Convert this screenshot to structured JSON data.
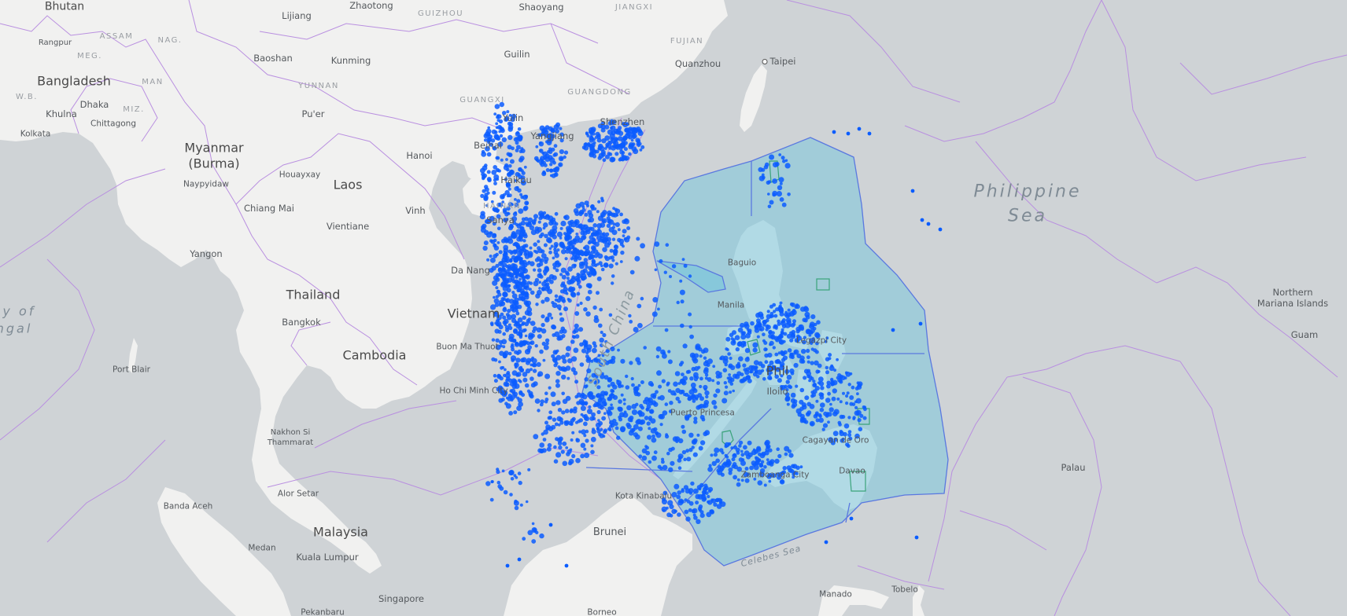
{
  "map": {
    "colors": {
      "water": "#cfd3d6",
      "land": "#f1f1f0",
      "border": "#b98fe0",
      "region_fill": "#7cc6dc",
      "region_stroke": "#5a78e0",
      "protected_stroke": "#3aa37a",
      "point": "#0a5cff"
    },
    "labels": {
      "bhutan": "Bhutan",
      "zhaotong": "Zhaotong",
      "shaoyang": "Shaoyang",
      "jiangxi": "JIANGXI",
      "guizhou": "GUIZHOU",
      "lijiang": "Lijiang",
      "rangpur": "Rangpur",
      "assam": "ASSAM",
      "nag": "NAG.",
      "meg": "MEG.",
      "fujian": "FUJIAN",
      "taipei": "Taipei",
      "baoshan": "Baoshan",
      "kunming": "Kunming",
      "guilin": "Guilin",
      "quanzhou": "Quanzhou",
      "bangladesh": "Bangladesh",
      "wb": "W.B.",
      "dhaka": "Dhaka",
      "man": "MAN",
      "yunnan": "YUNNAN",
      "guangdong": "GUANGDONG",
      "khulna": "Khulna",
      "miz": "MIZ.",
      "guangxi": "GUANGXI",
      "kolkata": "Kolkata",
      "chittagong": "Chittagong",
      "puer": "Pu'er",
      "yulin": "Yulin",
      "shenzhen": "Shenzhen",
      "yangjiang": "Yangjiang",
      "beihai": "Beihai",
      "myanmar": "Myanmar",
      "burma": "(Burma)",
      "hanoi": "Hanoi",
      "naypyidaw": "Naypyidaw",
      "houayxay": "Houayxay",
      "laos": "Laos",
      "haikou": "Haikou",
      "chiangmai": "Chiang Mai",
      "vinh": "Vinh",
      "hainan": "HAINAN",
      "vientiane": "Vientiane",
      "sanya": "Sanya",
      "yangon": "Yangon",
      "philippine_sea_1": "Philippine",
      "philippine_sea_2": "Sea",
      "danang": "Da Nang",
      "baguio": "Baguio",
      "bay_of_1": "ay of",
      "bay_of_2": "ngal",
      "thailand": "Thailand",
      "northern_mariana_1": "Northern",
      "northern_mariana_2": "Mariana Islands",
      "manila": "Manila",
      "vietnam": "Vietnam",
      "bangkok": "Bangkok",
      "south_china_sea": "South China",
      "guam": "Guam",
      "legazpi": "Legazpi City",
      "cambodia": "Cambodia",
      "buonmathuot": "Buon Ma Thuot",
      "port_blair": "Port Blair",
      "philippines": "Phil",
      "iloilo": "Iloilo",
      "hochiminh": "Ho Chi Minh City",
      "puerto_princesa": "Puerto Princesa",
      "nakhon_1": "Nakhon Si",
      "nakhon_2": "Thammarat",
      "cagayan": "Cagayan de Oro",
      "palau": "Palau",
      "davao": "Davao",
      "zamboanga": "Zamboanga City",
      "alorsetar": "Alor Setar",
      "kotakinabalu": "Kota Kinabalu",
      "banda_aceh": "Banda Aceh",
      "malaysia": "Malaysia",
      "brunei": "Brunei",
      "medan": "Medan",
      "kualalumpur": "Kuala Lumpur",
      "celebes_sea": "Celebes Sea",
      "tobelo": "Tobelo",
      "manado": "Manado",
      "singapore": "Singapore",
      "pekanbaru": "Pekanbaru",
      "borneo": "Borneo"
    }
  }
}
